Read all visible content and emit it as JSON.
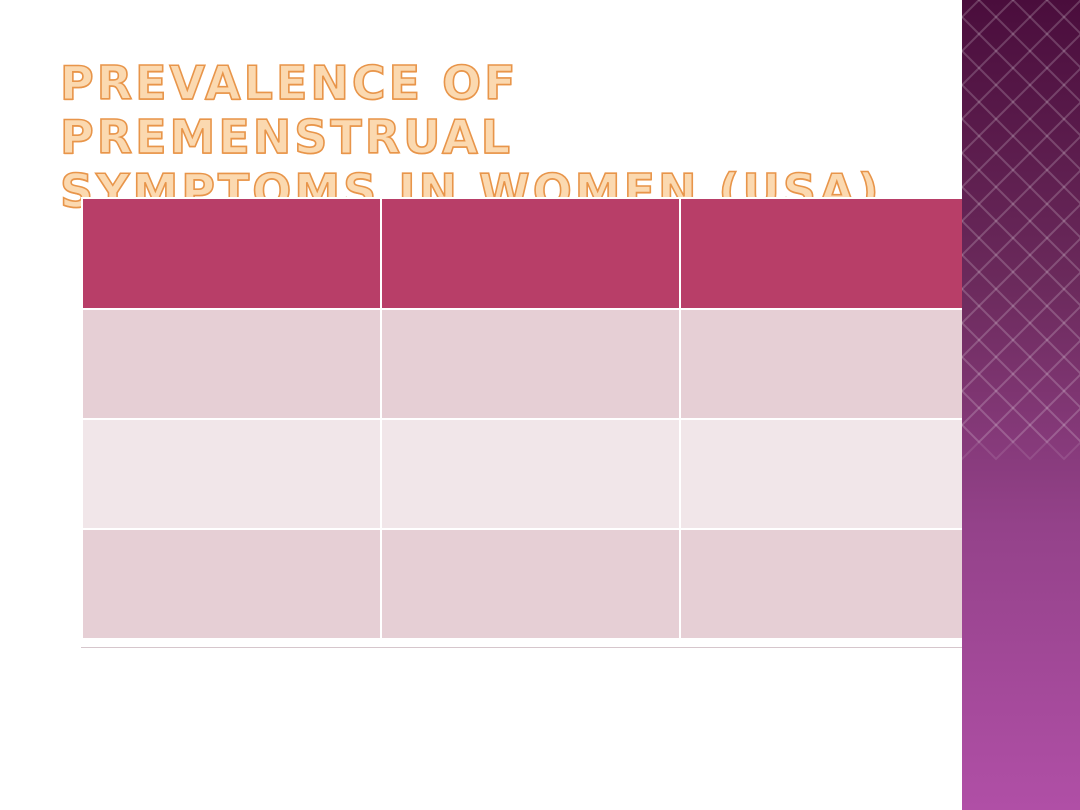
{
  "slide": {
    "title_lines": [
      "Prevalence of premenstrual",
      "symptoms in women (USA)"
    ]
  },
  "table": {
    "header": [
      "",
      "",
      ""
    ],
    "rows": [
      [
        "",
        "",
        ""
      ],
      [
        "",
        "",
        ""
      ],
      [
        "",
        "",
        ""
      ]
    ]
  },
  "colors": {
    "title_fill": "#fbd9b0",
    "title_outline": "#e8954a",
    "header_bg": "#b83e68",
    "row_odd_bg": "#e6cfd5",
    "row_even_bg": "#f1e6e9",
    "side_band_top": "#4a0d3c",
    "side_band_bottom": "#b04fa6"
  }
}
